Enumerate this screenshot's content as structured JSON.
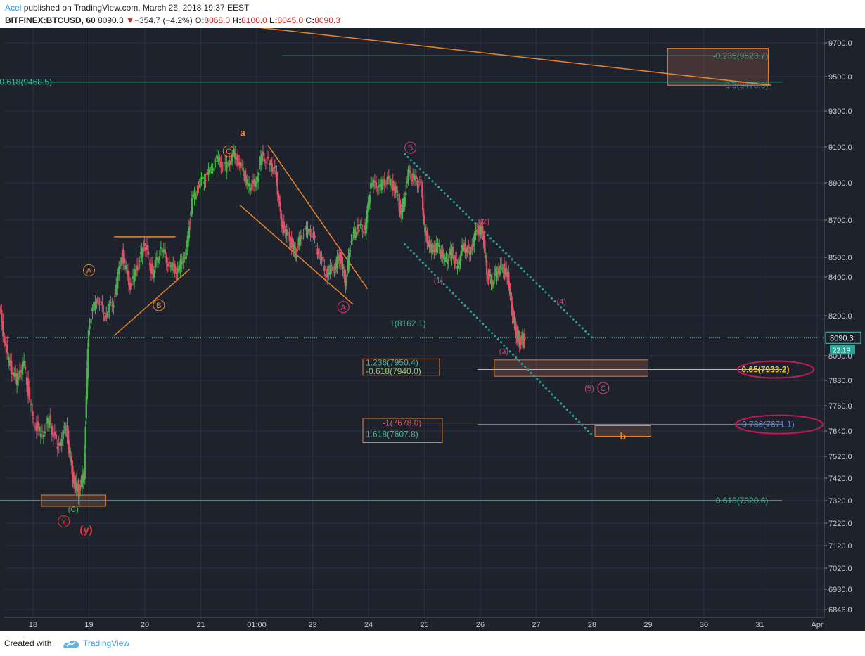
{
  "header": {
    "author": "Acel",
    "published_text": "published on TradingView.com, March 26, 2018 19:37 EEST",
    "symbol": "BITFINEX:BTCUSD, 60",
    "last_price": "8090.3",
    "change_arrow": "▼",
    "change": "−354.7 (−4.2%)",
    "o_label": "O:",
    "o_value": "8068.0",
    "h_label": "H:",
    "h_value": "8100.0",
    "l_label": "L:",
    "l_value": "8045.0",
    "c_label": "C:",
    "c_value": "8090.3"
  },
  "footer": {
    "created_with": "Created with",
    "brand": "TradingView"
  },
  "colors": {
    "background": "#1e222d",
    "grid": "#2c3140",
    "candle_up": "#4caf50",
    "candle_down": "#e0526a",
    "orange": "#e8852c",
    "teal": "#35a68e",
    "magenta": "#c2185b",
    "label_red": "#e53935"
  },
  "chart_data": {
    "type": "candlestick",
    "symbol": "BITFINEX:BTCUSD",
    "interval": "60",
    "x_tick_labels": [
      "18",
      "19",
      "20",
      "21",
      "01:00",
      "23",
      "24",
      "25",
      "26",
      "27",
      "28",
      "29",
      "30",
      "31",
      "Apr"
    ],
    "y_tick_labels": [
      "9700.0",
      "9500.0",
      "9300.0",
      "9100.0",
      "8900.0",
      "8700.0",
      "8500.0",
      "8400.0",
      "8200.0",
      "8000.0",
      "7880.0",
      "7760.0",
      "7640.0",
      "7520.0",
      "7420.0",
      "7320.0",
      "7220.0",
      "7120.0",
      "7020.0",
      "6930.0",
      "6846.0"
    ],
    "last_price_label": "8090.3",
    "countdown_label": "22:19",
    "price_path": [
      {
        "t": 17.4,
        "p": 8250
      },
      {
        "t": 17.55,
        "p": 7990
      },
      {
        "t": 17.7,
        "p": 7880
      },
      {
        "t": 17.85,
        "p": 7960
      },
      {
        "t": 18.0,
        "p": 7700
      },
      {
        "t": 18.15,
        "p": 7620
      },
      {
        "t": 18.3,
        "p": 7690
      },
      {
        "t": 18.45,
        "p": 7560
      },
      {
        "t": 18.6,
        "p": 7660
      },
      {
        "t": 18.72,
        "p": 7420
      },
      {
        "t": 18.82,
        "p": 7360
      },
      {
        "t": 18.92,
        "p": 7440
      },
      {
        "t": 19.0,
        "p": 8150
      },
      {
        "t": 19.15,
        "p": 8300
      },
      {
        "t": 19.3,
        "p": 8200
      },
      {
        "t": 19.45,
        "p": 8280
      },
      {
        "t": 19.6,
        "p": 8520
      },
      {
        "t": 19.75,
        "p": 8350
      },
      {
        "t": 19.9,
        "p": 8480
      },
      {
        "t": 20.0,
        "p": 8570
      },
      {
        "t": 20.15,
        "p": 8420
      },
      {
        "t": 20.3,
        "p": 8550
      },
      {
        "t": 20.45,
        "p": 8460
      },
      {
        "t": 20.6,
        "p": 8430
      },
      {
        "t": 20.75,
        "p": 8530
      },
      {
        "t": 20.85,
        "p": 8800
      },
      {
        "t": 21.0,
        "p": 8900
      },
      {
        "t": 21.15,
        "p": 8950
      },
      {
        "t": 21.3,
        "p": 9030
      },
      {
        "t": 21.45,
        "p": 8980
      },
      {
        "t": 21.6,
        "p": 9060
      },
      {
        "t": 21.75,
        "p": 8980
      },
      {
        "t": 21.85,
        "p": 8880
      },
      {
        "t": 22.0,
        "p": 8900
      },
      {
        "t": 22.1,
        "p": 9050
      },
      {
        "t": 22.25,
        "p": 9010
      },
      {
        "t": 22.35,
        "p": 8950
      },
      {
        "t": 22.45,
        "p": 8680
      },
      {
        "t": 22.6,
        "p": 8600
      },
      {
        "t": 22.7,
        "p": 8520
      },
      {
        "t": 22.8,
        "p": 8620
      },
      {
        "t": 22.95,
        "p": 8660
      },
      {
        "t": 23.1,
        "p": 8540
      },
      {
        "t": 23.25,
        "p": 8420
      },
      {
        "t": 23.4,
        "p": 8450
      },
      {
        "t": 23.5,
        "p": 8510
      },
      {
        "t": 23.6,
        "p": 8370
      },
      {
        "t": 23.7,
        "p": 8600
      },
      {
        "t": 23.82,
        "p": 8660
      },
      {
        "t": 23.95,
        "p": 8650
      },
      {
        "t": 24.05,
        "p": 8900
      },
      {
        "t": 24.2,
        "p": 8880
      },
      {
        "t": 24.35,
        "p": 8920
      },
      {
        "t": 24.5,
        "p": 8860
      },
      {
        "t": 24.6,
        "p": 8720
      },
      {
        "t": 24.72,
        "p": 8950
      },
      {
        "t": 24.82,
        "p": 8920
      },
      {
        "t": 24.95,
        "p": 8890
      },
      {
        "t": 25.0,
        "p": 8660
      },
      {
        "t": 25.12,
        "p": 8540
      },
      {
        "t": 25.25,
        "p": 8560
      },
      {
        "t": 25.38,
        "p": 8480
      },
      {
        "t": 25.5,
        "p": 8530
      },
      {
        "t": 25.6,
        "p": 8450
      },
      {
        "t": 25.7,
        "p": 8560
      },
      {
        "t": 25.82,
        "p": 8520
      },
      {
        "t": 25.95,
        "p": 8650
      },
      {
        "t": 26.05,
        "p": 8640
      },
      {
        "t": 26.12,
        "p": 8430
      },
      {
        "t": 26.22,
        "p": 8370
      },
      {
        "t": 26.32,
        "p": 8440
      },
      {
        "t": 26.42,
        "p": 8450
      },
      {
        "t": 26.5,
        "p": 8400
      },
      {
        "t": 26.58,
        "p": 8220
      },
      {
        "t": 26.65,
        "p": 8110
      },
      {
        "t": 26.72,
        "p": 8070
      },
      {
        "t": 26.8,
        "p": 8090.3
      }
    ],
    "levels": [
      {
        "label": "0.618(9468.5)",
        "value": 9468.5,
        "color": "teal"
      },
      {
        "label": "-0.236(9623.7)",
        "value": 9623.7,
        "color": "teal"
      },
      {
        "label": "0.5(9470.0)",
        "value": 9470.0,
        "color": "teal"
      },
      {
        "label": "1(8162.1)",
        "value": 8162.1,
        "color": "teal"
      },
      {
        "label": "1.236(7950.4)",
        "value": 7950.4,
        "color": "teal"
      },
      {
        "label": "-0.618(7940.0)",
        "value": 7940.0,
        "color": "yellowgreen"
      },
      {
        "label": "0.65(7933.2)",
        "value": 7933.2,
        "color": "yellow"
      },
      {
        "label": "-1(7678.0)",
        "value": 7678.0,
        "color": "red"
      },
      {
        "label": "1.618(7607.8)",
        "value": 7607.8,
        "color": "teal"
      },
      {
        "label": "0.786(7671.1)",
        "value": 7671.1,
        "color": "blue"
      },
      {
        "label": "0.618(7320.6)",
        "value": 7320.6,
        "color": "teal"
      }
    ],
    "wave_labels": [
      {
        "text": "a",
        "t": 21.75,
        "p": 9160,
        "style": "orange-bold"
      },
      {
        "text": "C",
        "t": 21.5,
        "p": 9060,
        "style": "orange-circle"
      },
      {
        "text": "A",
        "t": 19.0,
        "p": 8420,
        "style": "orange-circle"
      },
      {
        "text": "B",
        "t": 20.25,
        "p": 8240,
        "style": "orange-circle"
      },
      {
        "text": "A",
        "t": 23.55,
        "p": 8230,
        "style": "magenta-circle"
      },
      {
        "text": "B",
        "t": 24.75,
        "p": 9080,
        "style": "magenta-circle"
      },
      {
        "text": "(1)",
        "t": 25.25,
        "p": 8370,
        "style": "magenta"
      },
      {
        "text": "(2)",
        "t": 26.08,
        "p": 8680,
        "style": "magenta"
      },
      {
        "text": "(3)",
        "t": 26.42,
        "p": 8010,
        "style": "magenta"
      },
      {
        "text": "(4)",
        "t": 27.45,
        "p": 8260,
        "style": "magenta"
      },
      {
        "text": "(5)",
        "t": 27.95,
        "p": 7830,
        "style": "magenta"
      },
      {
        "text": "C",
        "t": 28.2,
        "p": 7830,
        "style": "magenta-circle"
      },
      {
        "text": "b",
        "t": 28.55,
        "p": 7600,
        "style": "orange-bold"
      },
      {
        "text": "(C)",
        "t": 18.72,
        "p": 7270,
        "style": "green"
      },
      {
        "text": "Y",
        "t": 18.55,
        "p": 7215,
        "style": "red-circle"
      },
      {
        "text": "(y)",
        "t": 18.95,
        "p": 7175,
        "style": "red-bold"
      }
    ]
  }
}
